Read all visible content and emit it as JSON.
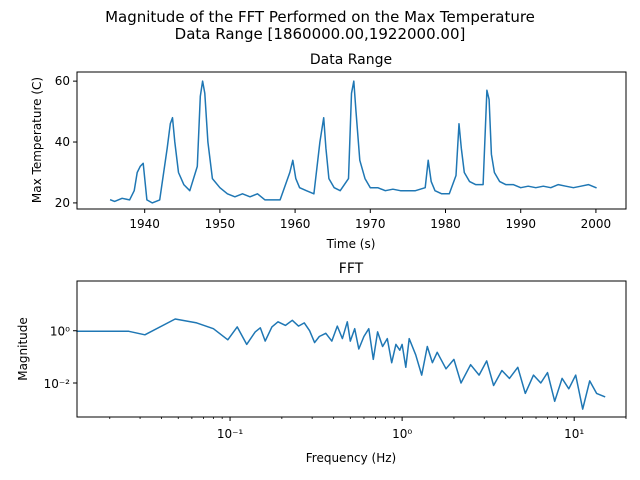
{
  "figure": {
    "suptitle_line1": "Magnitude of the FFT Performed on the Max Temperature",
    "suptitle_line2": "Data Range [1860000.00,1922000.00]",
    "line_color": "#1f77b4"
  },
  "chart_data": [
    {
      "type": "line",
      "title": "Data Range",
      "xlabel": "Time (s)",
      "ylabel": "Max Temperature (C)",
      "xlim": [
        1931,
        2004
      ],
      "ylim": [
        18,
        63
      ],
      "xticks": [
        1940,
        1950,
        1960,
        1970,
        1980,
        1990,
        2000
      ],
      "yticks": [
        20,
        40,
        60
      ],
      "grid": false,
      "series": [
        {
          "x": [
            1935.5,
            1936,
            1937,
            1938,
            1938.6,
            1939.0,
            1939.4,
            1939.8,
            1940.3,
            1941,
            1942,
            1943.0,
            1943.4,
            1943.7,
            1944.0,
            1944.5,
            1945.2,
            1946,
            1947.0,
            1947.4,
            1947.7,
            1948.0,
            1948.4,
            1949,
            1950,
            1951,
            1952,
            1953,
            1954,
            1955,
            1956,
            1957,
            1958,
            1959.3,
            1959.7,
            1960.1,
            1960.6,
            1961.5,
            1962.5,
            1963.3,
            1963.8,
            1964.1,
            1964.5,
            1965.2,
            1966,
            1967.1,
            1967.5,
            1967.8,
            1968.1,
            1968.6,
            1969.3,
            1970,
            1971,
            1972,
            1973,
            1974,
            1975,
            1976,
            1977.3,
            1977.7,
            1978.1,
            1978.6,
            1979.5,
            1980.5,
            1981.4,
            1981.8,
            1982.1,
            1982.5,
            1983.2,
            1984,
            1985.0,
            1985.5,
            1985.8,
            1986.1,
            1986.5,
            1987.2,
            1988,
            1989,
            1990,
            1991,
            1992,
            1993,
            1994,
            1995,
            1996,
            1997,
            1998,
            1999,
            2000
          ],
          "y": [
            21,
            20.5,
            21.5,
            21,
            24,
            30,
            32,
            33,
            21,
            20,
            21,
            38,
            46,
            48,
            40,
            30,
            26,
            24,
            32,
            55,
            60,
            56,
            40,
            28,
            25,
            23,
            22,
            23,
            22,
            23,
            21,
            21,
            21,
            30,
            34,
            28,
            25,
            24,
            23,
            40,
            48,
            38,
            28,
            25,
            24,
            28,
            56,
            60,
            50,
            34,
            28,
            25,
            25,
            24,
            24.5,
            24,
            24,
            24,
            25,
            34,
            27,
            24,
            23,
            23,
            29,
            46,
            38,
            30,
            27,
            26,
            26,
            57,
            54,
            36,
            30,
            27,
            26,
            26,
            25,
            25.5,
            25,
            25.5,
            25,
            26,
            25.5,
            25,
            25.5,
            26,
            25
          ]
        }
      ]
    },
    {
      "type": "line",
      "title": "FFT",
      "xlabel": "Frequency (Hz)",
      "ylabel": "Magnitude",
      "xscale": "log",
      "yscale": "log",
      "xlim": [
        0.0129,
        20
      ],
      "ylim": [
        0.0005,
        80
      ],
      "xticks": [
        0.1,
        1,
        10
      ],
      "xtick_labels": [
        "10⁻¹",
        "10⁰",
        "10¹"
      ],
      "yticks": [
        0.01,
        1
      ],
      "ytick_labels": [
        "10⁻²",
        "10⁰"
      ],
      "grid": false,
      "series": [
        {
          "x": [
            0.0129,
            0.0258,
            0.032,
            0.048,
            0.064,
            0.08,
            0.097,
            0.11,
            0.125,
            0.14,
            0.15,
            0.16,
            0.175,
            0.19,
            0.21,
            0.23,
            0.25,
            0.27,
            0.29,
            0.31,
            0.33,
            0.36,
            0.39,
            0.42,
            0.45,
            0.48,
            0.5,
            0.53,
            0.56,
            0.6,
            0.64,
            0.68,
            0.72,
            0.77,
            0.82,
            0.87,
            0.92,
            0.97,
            1.0,
            1.05,
            1.1,
            1.2,
            1.3,
            1.4,
            1.5,
            1.6,
            1.8,
            2.0,
            2.2,
            2.5,
            2.8,
            3.1,
            3.4,
            3.8,
            4.2,
            4.7,
            5.2,
            5.8,
            6.4,
            7.0,
            7.7,
            8.5,
            9.3,
            10.2,
            11.2,
            12.3,
            13.5,
            15.0
          ],
          "y": [
            0.95,
            0.95,
            0.7,
            2.8,
            2.0,
            1.2,
            0.45,
            1.4,
            0.3,
            0.9,
            1.3,
            0.4,
            1.4,
            2.2,
            1.6,
            2.5,
            1.5,
            2.0,
            1.0,
            0.35,
            0.6,
            0.8,
            0.4,
            1.5,
            0.5,
            2.2,
            0.4,
            1.2,
            0.2,
            0.6,
            1.2,
            0.08,
            0.9,
            0.25,
            0.5,
            0.06,
            0.3,
            0.18,
            0.3,
            0.04,
            0.5,
            0.12,
            0.02,
            0.25,
            0.06,
            0.15,
            0.035,
            0.08,
            0.01,
            0.05,
            0.02,
            0.07,
            0.008,
            0.03,
            0.015,
            0.04,
            0.004,
            0.02,
            0.01,
            0.025,
            0.002,
            0.015,
            0.006,
            0.02,
            0.001,
            0.012,
            0.004,
            0.003
          ]
        }
      ]
    }
  ]
}
